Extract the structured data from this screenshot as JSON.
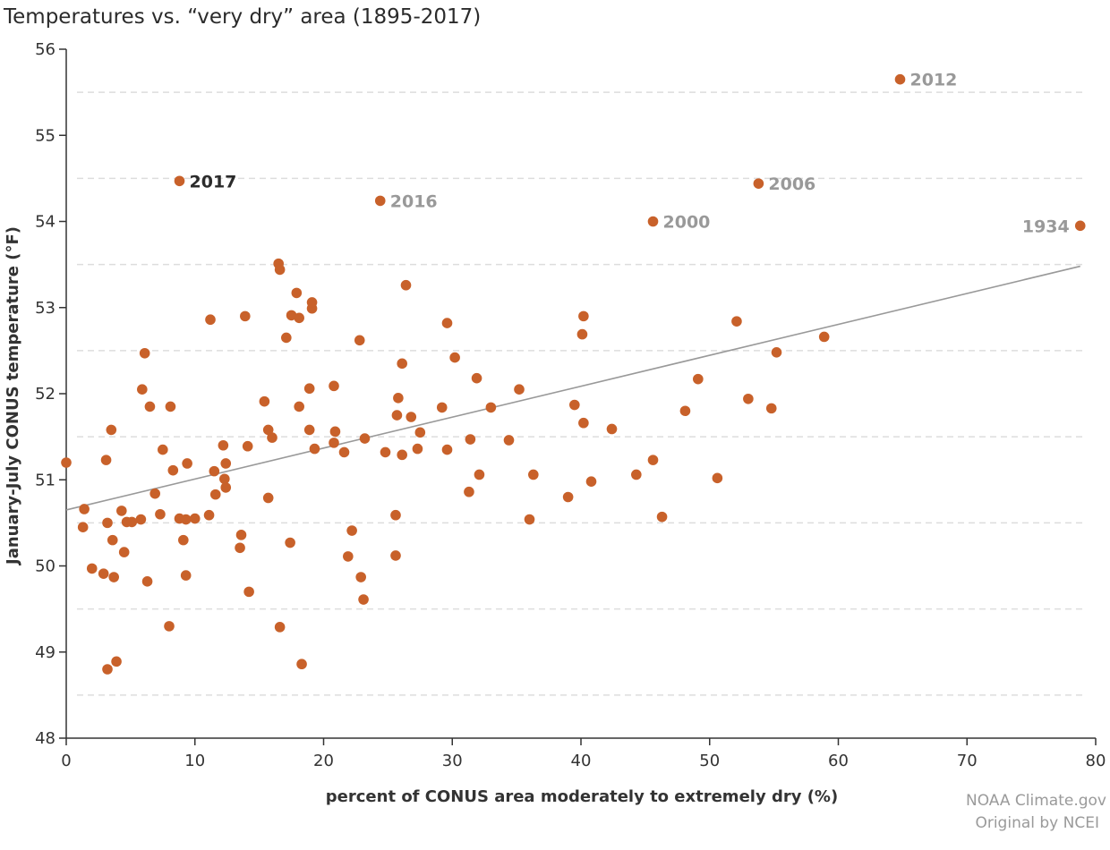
{
  "chart_data": {
    "type": "scatter",
    "title": "Temperatures vs. “very dry” area (1895-2017)",
    "xlabel": "percent of CONUS area moderately to extremely dry (%)",
    "ylabel": "January-July CONUS temperature (°F)",
    "xlim": [
      0,
      80
    ],
    "ylim": [
      48,
      56
    ],
    "x_ticks": [
      0,
      10,
      20,
      30,
      40,
      50,
      60,
      70,
      80
    ],
    "y_ticks": [
      48,
      49,
      50,
      51,
      52,
      53,
      54,
      55,
      56
    ],
    "grid": "horizontal dashed at half-degree values",
    "marker_color": "#c8612a",
    "trend_color": "#999999",
    "label_highlight_color": "#2b2b2b",
    "label_muted_color": "#999999",
    "trendline": [
      [
        0,
        50.65
      ],
      [
        78.8,
        53.48
      ]
    ],
    "labeled_points": [
      {
        "label": "2017",
        "x": 8.8,
        "y": 54.47,
        "style": "highlight",
        "position": "right"
      },
      {
        "label": "2016",
        "x": 24.4,
        "y": 54.24,
        "style": "muted",
        "position": "right"
      },
      {
        "label": "2012",
        "x": 64.8,
        "y": 55.65,
        "style": "muted",
        "position": "right"
      },
      {
        "label": "2006",
        "x": 53.8,
        "y": 54.44,
        "style": "muted",
        "position": "right"
      },
      {
        "label": "2000",
        "x": 45.6,
        "y": 54.0,
        "style": "muted",
        "position": "right"
      },
      {
        "label": "1934",
        "x": 78.8,
        "y": 53.95,
        "style": "muted",
        "position": "left"
      }
    ],
    "points": [
      [
        0,
        51.2
      ],
      [
        1.3,
        50.45
      ],
      [
        1.4,
        50.66
      ],
      [
        2.0,
        49.97
      ],
      [
        2.9,
        49.91
      ],
      [
        3.1,
        51.23
      ],
      [
        3.2,
        50.5
      ],
      [
        3.5,
        51.58
      ],
      [
        3.6,
        50.3
      ],
      [
        3.7,
        49.87
      ],
      [
        3.9,
        48.89
      ],
      [
        3.2,
        48.8
      ],
      [
        4.3,
        50.64
      ],
      [
        4.5,
        50.16
      ],
      [
        4.7,
        50.51
      ],
      [
        5.1,
        50.51
      ],
      [
        5.8,
        50.54
      ],
      [
        5.9,
        52.05
      ],
      [
        6.1,
        52.47
      ],
      [
        6.3,
        49.82
      ],
      [
        6.5,
        51.85
      ],
      [
        6.9,
        50.84
      ],
      [
        7.3,
        50.6
      ],
      [
        7.5,
        51.35
      ],
      [
        8.0,
        49.3
      ],
      [
        8.1,
        51.85
      ],
      [
        8.3,
        51.11
      ],
      [
        8.8,
        50.55
      ],
      [
        9.1,
        50.3
      ],
      [
        9.3,
        49.89
      ],
      [
        9.4,
        51.19
      ],
      [
        9.3,
        50.54
      ],
      [
        10.0,
        50.55
      ],
      [
        11.1,
        50.59
      ],
      [
        11.2,
        52.86
      ],
      [
        11.5,
        51.1
      ],
      [
        11.6,
        50.83
      ],
      [
        12.2,
        51.4
      ],
      [
        12.3,
        51.01
      ],
      [
        12.4,
        50.91
      ],
      [
        12.4,
        51.19
      ],
      [
        13.5,
        50.21
      ],
      [
        13.6,
        50.36
      ],
      [
        13.9,
        52.9
      ],
      [
        14.1,
        51.39
      ],
      [
        14.2,
        49.7
      ],
      [
        15.4,
        51.91
      ],
      [
        15.7,
        51.58
      ],
      [
        15.7,
        50.79
      ],
      [
        16.0,
        51.49
      ],
      [
        16.5,
        53.51
      ],
      [
        16.6,
        53.44
      ],
      [
        16.6,
        49.29
      ],
      [
        17.1,
        52.65
      ],
      [
        17.4,
        50.27
      ],
      [
        17.5,
        52.91
      ],
      [
        17.9,
        53.17
      ],
      [
        18.1,
        52.88
      ],
      [
        18.1,
        51.85
      ],
      [
        18.3,
        48.86
      ],
      [
        18.9,
        52.06
      ],
      [
        18.9,
        51.58
      ],
      [
        19.1,
        52.99
      ],
      [
        19.1,
        53.06
      ],
      [
        19.3,
        51.36
      ],
      [
        20.8,
        52.09
      ],
      [
        20.8,
        51.43
      ],
      [
        20.9,
        51.56
      ],
      [
        21.6,
        51.32
      ],
      [
        21.9,
        50.11
      ],
      [
        22.2,
        50.41
      ],
      [
        22.8,
        52.62
      ],
      [
        22.9,
        49.87
      ],
      [
        23.1,
        49.61
      ],
      [
        23.2,
        51.48
      ],
      [
        24.8,
        51.32
      ],
      [
        25.6,
        50.59
      ],
      [
        25.6,
        50.12
      ],
      [
        25.7,
        51.75
      ],
      [
        25.8,
        51.95
      ],
      [
        26.1,
        52.35
      ],
      [
        26.1,
        51.29
      ],
      [
        26.4,
        53.26
      ],
      [
        26.8,
        51.73
      ],
      [
        27.3,
        51.36
      ],
      [
        27.5,
        51.55
      ],
      [
        29.2,
        51.84
      ],
      [
        29.6,
        52.82
      ],
      [
        29.6,
        51.35
      ],
      [
        30.2,
        52.42
      ],
      [
        31.3,
        50.86
      ],
      [
        31.4,
        51.47
      ],
      [
        31.9,
        52.18
      ],
      [
        32.1,
        51.06
      ],
      [
        33.0,
        51.84
      ],
      [
        34.4,
        51.46
      ],
      [
        35.2,
        52.05
      ],
      [
        36.0,
        50.54
      ],
      [
        36.3,
        51.06
      ],
      [
        39.0,
        50.8
      ],
      [
        39.5,
        51.87
      ],
      [
        40.1,
        52.69
      ],
      [
        40.2,
        52.9
      ],
      [
        40.2,
        51.66
      ],
      [
        40.8,
        50.98
      ],
      [
        42.4,
        51.59
      ],
      [
        44.3,
        51.06
      ],
      [
        45.6,
        51.23
      ],
      [
        46.3,
        50.57
      ],
      [
        48.1,
        51.8
      ],
      [
        49.1,
        52.17
      ],
      [
        50.6,
        51.02
      ],
      [
        52.1,
        52.84
      ],
      [
        53.0,
        51.94
      ],
      [
        54.8,
        51.83
      ],
      [
        55.2,
        52.48
      ],
      [
        58.9,
        52.66
      ],
      [
        8.8,
        54.47
      ],
      [
        24.4,
        54.24
      ],
      [
        64.8,
        55.65
      ],
      [
        53.8,
        54.44
      ],
      [
        45.6,
        54.0
      ],
      [
        78.8,
        53.95
      ]
    ]
  },
  "credits": {
    "line1": "NOAA Climate.gov",
    "line2": "Original by NCEI"
  }
}
